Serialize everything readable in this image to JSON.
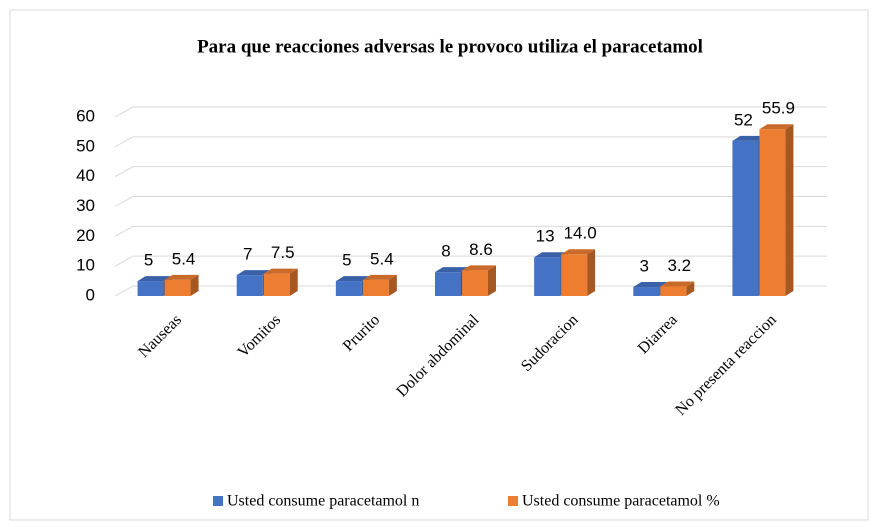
{
  "chart_data": {
    "type": "bar3d",
    "title": "Para que reacciones adversas le provoco utiliza el paracetamol",
    "categories": [
      "Nauseas",
      "Vomitos",
      "Prurito",
      "Dolor abdominal",
      "Sudoracion",
      "Diarrea",
      "No presenta reaccion"
    ],
    "series": [
      {
        "name": "Usted consume paracetamol n",
        "color": "#4472c4",
        "values": [
          5,
          7,
          5,
          8,
          13,
          3,
          52
        ]
      },
      {
        "name": "Usted consume paracetamol %",
        "color": "#ed7d31",
        "values": [
          5.4,
          7.5,
          5.4,
          8.6,
          14.0,
          3.2,
          55.9
        ],
        "value_labels": [
          "5.4",
          "7.5",
          "5.4",
          "8.6",
          "14.0",
          "3.2",
          "55.9"
        ]
      }
    ],
    "ylim": [
      0,
      60
    ],
    "yticks": [
      0,
      10,
      20,
      30,
      40,
      50,
      60
    ],
    "grid": true,
    "legend": "bottom"
  }
}
